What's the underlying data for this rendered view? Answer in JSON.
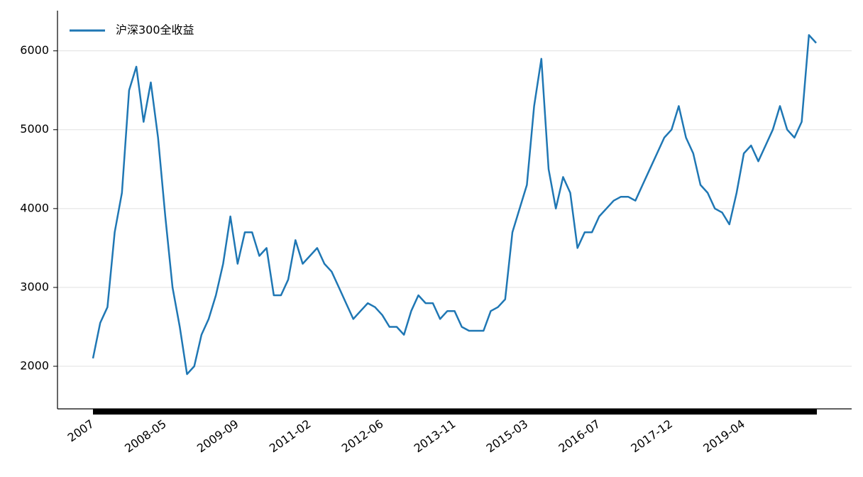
{
  "chart_data": {
    "type": "line",
    "x": [
      "2007",
      null,
      null,
      null,
      null,
      null,
      null,
      null,
      null,
      null,
      "2008-05",
      null,
      null,
      null,
      null,
      null,
      null,
      null,
      null,
      null,
      "2009-09",
      null,
      null,
      null,
      null,
      null,
      null,
      null,
      null,
      null,
      "2011-02",
      null,
      null,
      null,
      null,
      null,
      null,
      null,
      null,
      null,
      "2012-06",
      null,
      null,
      null,
      null,
      null,
      null,
      null,
      null,
      null,
      "2013-11",
      null,
      null,
      null,
      null,
      null,
      null,
      null,
      null,
      null,
      "2015-03",
      null,
      null,
      null,
      null,
      null,
      null,
      null,
      null,
      null,
      "2016-07",
      null,
      null,
      null,
      null,
      null,
      null,
      null,
      null,
      null,
      "2017-12",
      null,
      null,
      null,
      null,
      null,
      null,
      null,
      null,
      null,
      "2019-04",
      null,
      null,
      null,
      null,
      null,
      null,
      null,
      null,
      null,
      null
    ],
    "series": [
      {
        "name": "沪深300全收益",
        "color": "#1f77b4",
        "values": [
          2100,
          2550,
          2750,
          3700,
          4200,
          5500,
          5800,
          5100,
          5600,
          4900,
          3900,
          3000,
          2500,
          1900,
          2000,
          2400,
          2600,
          2900,
          3300,
          3900,
          3300,
          3700,
          3700,
          3400,
          3500,
          2900,
          2900,
          3100,
          3600,
          3300,
          3400,
          3500,
          3300,
          3200,
          3000,
          2800,
          2600,
          2700,
          2800,
          2750,
          2650,
          2500,
          2500,
          2400,
          2700,
          2900,
          2800,
          2800,
          2600,
          2700,
          2700,
          2500,
          2450,
          2450,
          2450,
          2700,
          2750,
          2850,
          3700,
          4000,
          4300,
          5300,
          5900,
          4500,
          4000,
          4400,
          4200,
          3500,
          3700,
          3700,
          3900,
          4000,
          4100,
          4150,
          4150,
          4100,
          4300,
          4500,
          4700,
          4900,
          5000,
          5300,
          4900,
          4700,
          4300,
          4200,
          4000,
          3950,
          3800,
          4200,
          4700,
          4800,
          4600,
          4800,
          5000,
          5300,
          5000,
          4900,
          5100,
          6200,
          6100
        ]
      }
    ],
    "ylim": [
      1460,
      6510
    ],
    "yticks": [
      2000,
      3000,
      4000,
      5000,
      6000
    ],
    "grid": true,
    "legend": "upper left"
  }
}
